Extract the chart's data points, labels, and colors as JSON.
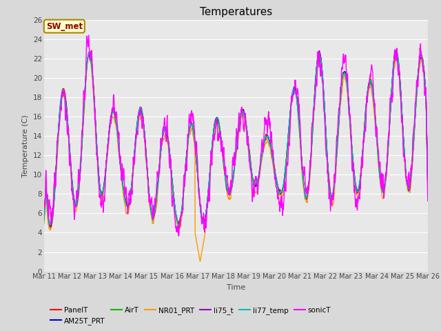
{
  "title": "Temperatures",
  "xlabel": "Time",
  "ylabel": "Temperature (C)",
  "ylim": [
    0,
    26
  ],
  "yticks": [
    0,
    2,
    4,
    6,
    8,
    10,
    12,
    14,
    16,
    18,
    20,
    22,
    24,
    26
  ],
  "x_labels": [
    "Mar 11",
    "Mar 12",
    "Mar 13",
    "Mar 14",
    "Mar 15",
    "Mar 16",
    "Mar 17",
    "Mar 18",
    "Mar 19",
    "Mar 20",
    "Mar 21",
    "Mar 22",
    "Mar 23",
    "Mar 24",
    "Mar 25",
    "Mar 26"
  ],
  "annotation_text": "SW_met",
  "series": {
    "PanelT": {
      "color": "#ff0000",
      "lw": 1.0
    },
    "AM25T_PRT": {
      "color": "#0000cc",
      "lw": 1.0
    },
    "AirT": {
      "color": "#00bb00",
      "lw": 1.0
    },
    "NR01_PRT": {
      "color": "#ff9900",
      "lw": 1.0
    },
    "li75_t": {
      "color": "#9900bb",
      "lw": 1.0
    },
    "li77_temp": {
      "color": "#00bbbb",
      "lw": 1.0
    },
    "sonicT": {
      "color": "#ff00ff",
      "lw": 1.0
    }
  },
  "bg_color": "#d9d9d9",
  "plot_bg": "#e8e8e8",
  "grid_color": "#ffffff",
  "n_points": 1500
}
